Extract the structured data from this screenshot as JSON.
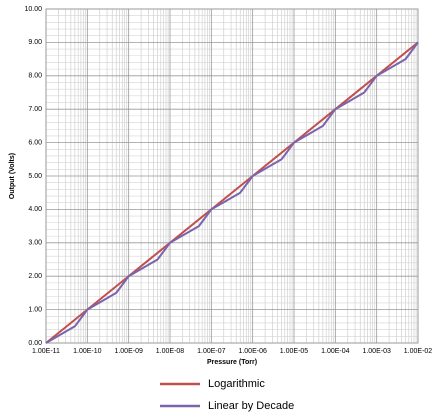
{
  "chart_data": {
    "type": "line",
    "x_label": "Pressure (Torr)",
    "y_label": "Output (Volts)",
    "x_scale": "log",
    "grid": true,
    "legend": "bottom",
    "xlim": [
      1e-11,
      0.01
    ],
    "xticks": [
      {
        "value": 1e-11,
        "label": "1.00E-11"
      },
      {
        "value": 1e-10,
        "label": "1.00E-10"
      },
      {
        "value": 1e-09,
        "label": "1.00E-09"
      },
      {
        "value": 1e-08,
        "label": "1.00E-08"
      },
      {
        "value": 1e-07,
        "label": "1.00E-07"
      },
      {
        "value": 1e-06,
        "label": "1.00E-06"
      },
      {
        "value": 1e-05,
        "label": "1.00E-05"
      },
      {
        "value": 0.0001,
        "label": "1.00E-04"
      },
      {
        "value": 0.001,
        "label": "1.00E-03"
      },
      {
        "value": 0.01,
        "label": "1.00E-02"
      }
    ],
    "ylim": [
      0,
      10
    ],
    "yticks": [
      {
        "value": 0,
        "label": "0.00"
      },
      {
        "value": 1,
        "label": "1.00"
      },
      {
        "value": 2,
        "label": "2.00"
      },
      {
        "value": 3,
        "label": "3.00"
      },
      {
        "value": 4,
        "label": "4.00"
      },
      {
        "value": 5,
        "label": "5.00"
      },
      {
        "value": 6,
        "label": "6.00"
      },
      {
        "value": 7,
        "label": "7.00"
      },
      {
        "value": 8,
        "label": "8.00"
      },
      {
        "value": 9,
        "label": "9.00"
      },
      {
        "value": 10,
        "label": "10.00"
      }
    ],
    "series": [
      {
        "name": "Logarithmic",
        "color": "#c0504d",
        "x": [
          1e-11,
          1e-10,
          1e-09,
          1e-08,
          1e-07,
          1e-06,
          1e-05,
          0.0001,
          0.001,
          0.01
        ],
        "values": [
          0,
          1,
          2,
          3,
          4,
          5,
          6,
          7,
          8,
          9
        ]
      },
      {
        "name": "Linear by Decade",
        "color": "#7a64ae",
        "x": [
          1e-11,
          5e-11,
          1e-10,
          5e-10,
          1e-09,
          5e-09,
          1e-08,
          5e-08,
          1e-07,
          5e-07,
          1e-06,
          5e-06,
          1e-05,
          5e-05,
          0.0001,
          0.0005,
          0.001,
          0.005,
          0.01
        ],
        "values": [
          0,
          0.5,
          1,
          1.5,
          2,
          2.5,
          3,
          3.5,
          4,
          4.5,
          5,
          5.5,
          6,
          6.5,
          7,
          7.5,
          8,
          8.5,
          9
        ]
      }
    ]
  }
}
